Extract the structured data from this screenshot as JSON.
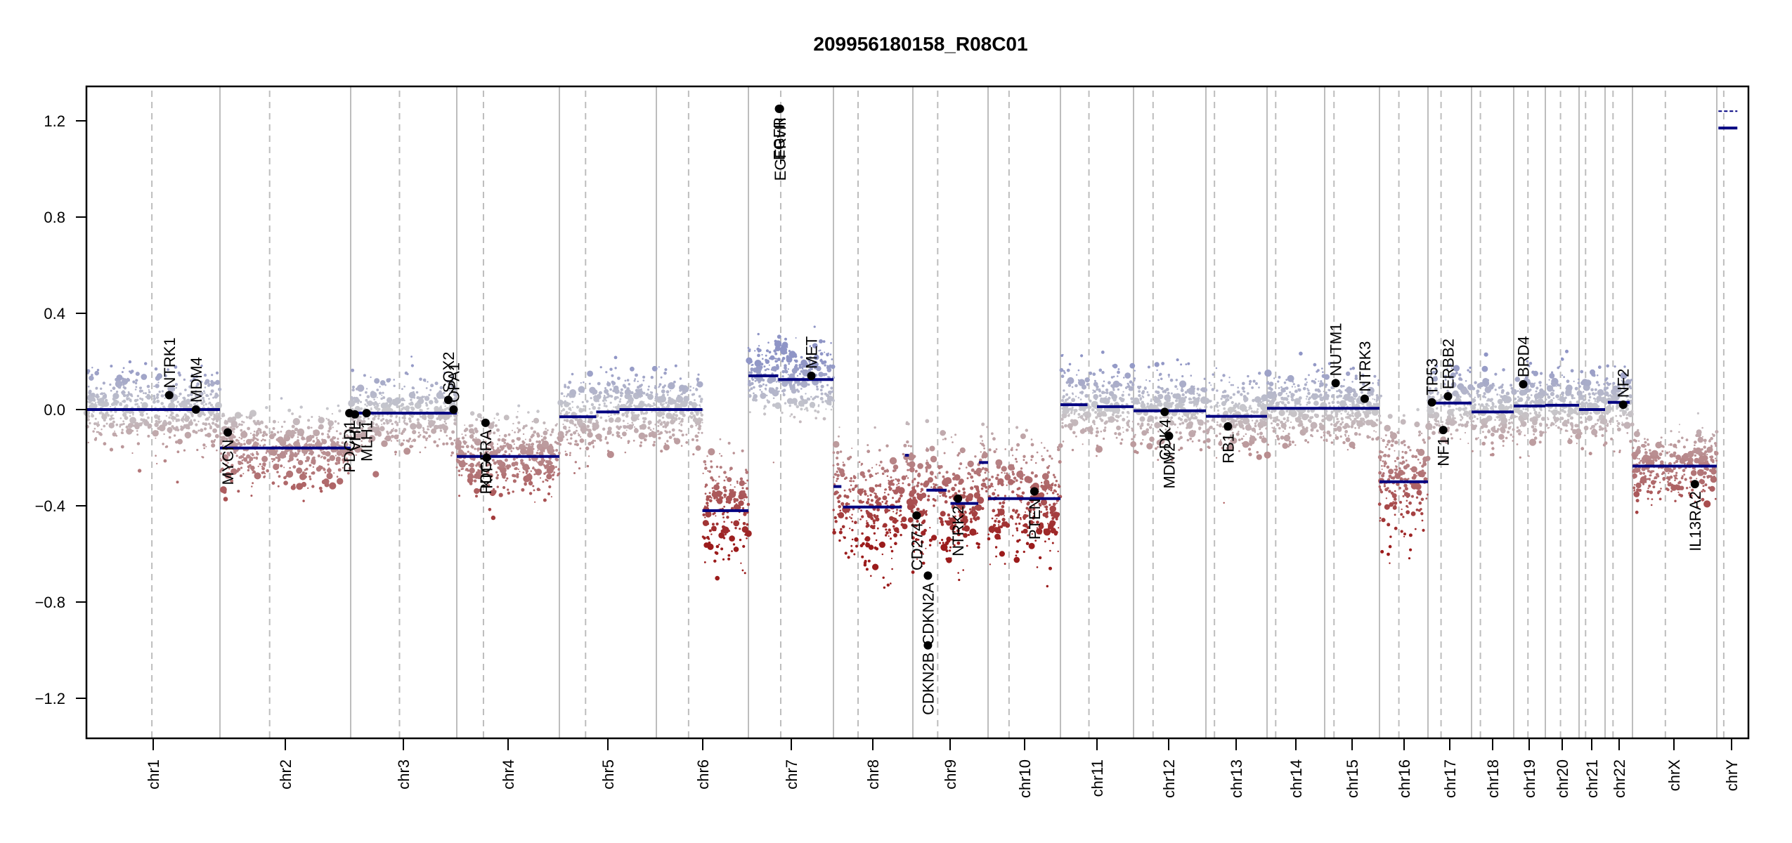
{
  "chart_data": {
    "type": "scatter",
    "title": "209956180158_R08C01",
    "xlabel": "",
    "ylabel": "",
    "ylim": [
      -1.35,
      1.35
    ],
    "yticks": [
      1.2,
      0.8,
      0.4,
      0.0,
      -0.4,
      -0.8,
      -1.2
    ],
    "ytick_labels": [
      "1.2",
      "0.8",
      "0.4",
      "0.0",
      "−0.4",
      "−0.8",
      "−1.2"
    ],
    "grid": false,
    "colors": {
      "gain": "#8f95c6",
      "neutral": "#c8c8cc",
      "loss": "#9b1b1b",
      "segment": "#000080",
      "gene_point": "#000000",
      "boundary": "#bdbdbd",
      "centromere": "#bdbdbd"
    },
    "chromosomes": [
      {
        "name": "chr1",
        "label": "chr1",
        "length": 249,
        "centromere": 0.49,
        "segments": [
          {
            "start": 0.0,
            "end": 1.0,
            "value": 0.0
          }
        ]
      },
      {
        "name": "chr2",
        "label": "chr2",
        "length": 243,
        "centromere": 0.38,
        "segments": [
          {
            "start": 0.0,
            "end": 1.0,
            "value": -0.16
          }
        ]
      },
      {
        "name": "chr3",
        "label": "chr3",
        "length": 198,
        "centromere": 0.46,
        "segments": [
          {
            "start": 0.0,
            "end": 1.0,
            "value": -0.015
          }
        ]
      },
      {
        "name": "chr4",
        "label": "chr4",
        "length": 191,
        "centromere": 0.26,
        "segments": [
          {
            "start": 0.0,
            "end": 1.0,
            "value": -0.195
          }
        ]
      },
      {
        "name": "chr5",
        "label": "chr5",
        "length": 181,
        "centromere": 0.27,
        "segments": [
          {
            "start": 0.0,
            "end": 0.38,
            "value": -0.03
          },
          {
            "start": 0.38,
            "end": 0.62,
            "value": -0.01
          },
          {
            "start": 0.62,
            "end": 1.0,
            "value": 0.0
          }
        ]
      },
      {
        "name": "chr6",
        "label": "chr6",
        "length": 171,
        "centromere": 0.35,
        "segments": [
          {
            "start": 0.0,
            "end": 0.5,
            "value": 0.0
          },
          {
            "start": 0.5,
            "end": 1.0,
            "value": -0.42
          }
        ]
      },
      {
        "name": "chr7",
        "label": "chr7",
        "length": 159,
        "centromere": 0.38,
        "segments": [
          {
            "start": 0.0,
            "end": 0.35,
            "value": 0.14
          },
          {
            "start": 0.35,
            "end": 1.0,
            "value": 0.125
          }
        ]
      },
      {
        "name": "chr8",
        "label": "chr8",
        "length": 146,
        "centromere": 0.31,
        "segments": [
          {
            "start": 0.0,
            "end": 0.1,
            "value": -0.32
          },
          {
            "start": 0.12,
            "end": 0.86,
            "value": -0.405
          },
          {
            "start": 0.9,
            "end": 0.95,
            "value": -0.19
          }
        ]
      },
      {
        "name": "chr9",
        "label": "chr9",
        "length": 141,
        "centromere": 0.33,
        "segments": [
          {
            "start": 0.0,
            "end": 0.1,
            "value": -0.44
          },
          {
            "start": 0.18,
            "end": 0.45,
            "value": -0.335
          },
          {
            "start": 0.5,
            "end": 0.87,
            "value": -0.39
          },
          {
            "start": 0.88,
            "end": 1.0,
            "value": -0.22
          }
        ]
      },
      {
        "name": "chr10",
        "label": "chr10",
        "length": 136,
        "centromere": 0.29,
        "segments": [
          {
            "start": 0.0,
            "end": 1.0,
            "value": -0.37
          }
        ]
      },
      {
        "name": "chr11",
        "label": "chr11",
        "length": 135,
        "centromere": 0.39,
        "segments": [
          {
            "start": 0.0,
            "end": 0.37,
            "value": 0.02
          },
          {
            "start": 0.5,
            "end": 1.0,
            "value": 0.012
          }
        ]
      },
      {
        "name": "chr12",
        "label": "chr12",
        "length": 134,
        "centromere": 0.27,
        "segments": [
          {
            "start": 0.0,
            "end": 1.0,
            "value": -0.005
          }
        ]
      },
      {
        "name": "chr13",
        "label": "chr13",
        "length": 115,
        "centromere": 0.14,
        "segments": [
          {
            "start": 0.0,
            "end": 1.0,
            "value": -0.028
          }
        ]
      },
      {
        "name": "chr14",
        "label": "chr14",
        "length": 107,
        "centromere": 0.15,
        "segments": [
          {
            "start": 0.0,
            "end": 1.0,
            "value": 0.005
          }
        ]
      },
      {
        "name": "chr15",
        "label": "chr15",
        "length": 102,
        "centromere": 0.17,
        "segments": [
          {
            "start": 0.0,
            "end": 1.0,
            "value": 0.005
          }
        ]
      },
      {
        "name": "chr16",
        "label": "chr16",
        "length": 90,
        "centromere": 0.4,
        "segments": [
          {
            "start": 0.0,
            "end": 1.0,
            "value": -0.3
          }
        ]
      },
      {
        "name": "chr17",
        "label": "chr17",
        "length": 81,
        "centromere": 0.3,
        "segments": [
          {
            "start": 0.0,
            "end": 1.0,
            "value": 0.027
          }
        ]
      },
      {
        "name": "chr18",
        "label": "chr18",
        "length": 78,
        "centromere": 0.21,
        "segments": [
          {
            "start": 0.0,
            "end": 1.0,
            "value": -0.01
          }
        ]
      },
      {
        "name": "chr19",
        "label": "chr19",
        "length": 59,
        "centromere": 0.45,
        "segments": [
          {
            "start": 0.0,
            "end": 1.0,
            "value": 0.015
          }
        ]
      },
      {
        "name": "chr20",
        "label": "chr20",
        "length": 63,
        "centromere": 0.45,
        "segments": [
          {
            "start": 0.0,
            "end": 1.0,
            "value": 0.018
          }
        ]
      },
      {
        "name": "chr21",
        "label": "chr21",
        "length": 48,
        "centromere": 0.25,
        "segments": [
          {
            "start": 0.0,
            "end": 1.0,
            "value": 0.0
          }
        ]
      },
      {
        "name": "chr22",
        "label": "chr22",
        "length": 51,
        "centromere": 0.29,
        "segments": [
          {
            "start": 0.1,
            "end": 0.9,
            "value": 0.03
          }
        ]
      },
      {
        "name": "chrX",
        "label": "chrX",
        "length": 155,
        "centromere": 0.39,
        "segments": [
          {
            "start": 0.0,
            "end": 1.0,
            "value": -0.235
          }
        ]
      },
      {
        "name": "chrY",
        "label": "chrY",
        "length": 59,
        "centromere": 0.22,
        "segments": [
          {
            "start": 0.05,
            "end": 0.65,
            "value": 1.17
          }
        ]
      }
    ],
    "genes": [
      {
        "name": "NTRK1",
        "chr": "chr1",
        "pos": 0.62,
        "value": 0.06
      },
      {
        "name": "MDM4",
        "chr": "chr1",
        "pos": 0.82,
        "value": 0.0
      },
      {
        "name": "MYCN",
        "chr": "chr2",
        "pos": 0.06,
        "value": -0.095
      },
      {
        "name": "PDCD1",
        "chr": "chr2",
        "pos": 0.99,
        "value": -0.015
      },
      {
        "name": "VHL",
        "chr": "chr3",
        "pos": 0.04,
        "value": -0.02
      },
      {
        "name": "MLH1",
        "chr": "chr3",
        "pos": 0.15,
        "value": -0.015
      },
      {
        "name": "SOX2",
        "chr": "chr3",
        "pos": 0.92,
        "value": 0.04
      },
      {
        "name": "OPA1",
        "chr": "chr3",
        "pos": 0.97,
        "value": 0.0
      },
      {
        "name": "PDGFRA",
        "chr": "chr4",
        "pos": 0.28,
        "value": -0.055
      },
      {
        "name": "KIT",
        "chr": "chr4",
        "pos": 0.29,
        "value": -0.2
      },
      {
        "name": "EGFR",
        "chr": "chr7",
        "pos": 0.36,
        "value": 1.25
      },
      {
        "name": "EGFRvIII",
        "chr": "chr7",
        "pos": 0.37,
        "value": 1.25
      },
      {
        "name": "MET",
        "chr": "chr7",
        "pos": 0.74,
        "value": 0.14
      },
      {
        "name": "CD274",
        "chr": "chr9",
        "pos": 0.05,
        "value": -0.44
      },
      {
        "name": "CDKN2A",
        "chr": "chr9",
        "pos": 0.2,
        "value": -0.69
      },
      {
        "name": "CDKN2B",
        "chr": "chr9",
        "pos": 0.2,
        "value": -0.98
      },
      {
        "name": "NTRK2",
        "chr": "chr9",
        "pos": 0.6,
        "value": -0.37
      },
      {
        "name": "PTEN",
        "chr": "chr10",
        "pos": 0.64,
        "value": -0.34
      },
      {
        "name": "CDK4",
        "chr": "chr12",
        "pos": 0.43,
        "value": -0.01
      },
      {
        "name": "MDM2",
        "chr": "chr12",
        "pos": 0.49,
        "value": -0.11
      },
      {
        "name": "RB1",
        "chr": "chr13",
        "pos": 0.36,
        "value": -0.07
      },
      {
        "name": "NUTM1",
        "chr": "chr15",
        "pos": 0.2,
        "value": 0.11
      },
      {
        "name": "NTRK3",
        "chr": "chr15",
        "pos": 0.73,
        "value": 0.045
      },
      {
        "name": "TP53",
        "chr": "chr17",
        "pos": 0.09,
        "value": 0.03
      },
      {
        "name": "NF1",
        "chr": "chr17",
        "pos": 0.35,
        "value": -0.085
      },
      {
        "name": "ERBB2",
        "chr": "chr17",
        "pos": 0.46,
        "value": 0.055
      },
      {
        "name": "BRD4",
        "chr": "chr19",
        "pos": 0.3,
        "value": 0.105
      },
      {
        "name": "NF2",
        "chr": "chr22",
        "pos": 0.66,
        "value": 0.02
      },
      {
        "name": "IL13RA2",
        "chr": "chrX",
        "pos": 0.74,
        "value": -0.31
      }
    ]
  }
}
